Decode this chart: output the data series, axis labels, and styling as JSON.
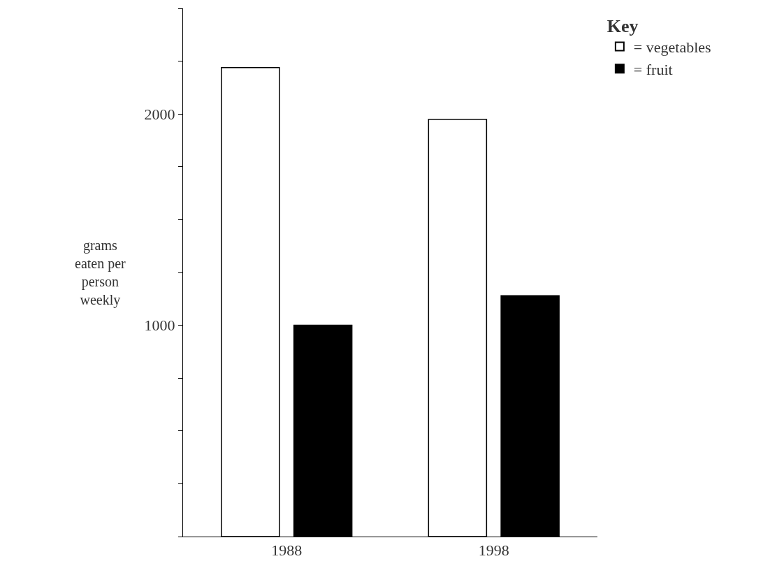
{
  "chart_data": {
    "type": "bar",
    "ylabel": "grams eaten per person weekly",
    "legend_title": "Key",
    "categories": [
      "1988",
      "1998"
    ],
    "series": [
      {
        "name": "= vegetables",
        "color": "#ffffff",
        "values": [
          2220,
          1975
        ]
      },
      {
        "name": "= fruit",
        "color": "#000000",
        "values": [
          1000,
          1140
        ]
      }
    ],
    "ylim": [
      0,
      2500
    ],
    "yticks": [
      {
        "value": 0,
        "label": null
      },
      {
        "value": 250,
        "label": null
      },
      {
        "value": 500,
        "label": null
      },
      {
        "value": 750,
        "label": null
      },
      1000,
      {
        "value": 1250,
        "label": null
      },
      {
        "value": 1500,
        "label": null
      },
      {
        "value": 1750,
        "label": null
      },
      2000,
      {
        "value": 2250,
        "label": null
      },
      {
        "value": 2500,
        "label": null
      }
    ],
    "legend": "top right"
  }
}
